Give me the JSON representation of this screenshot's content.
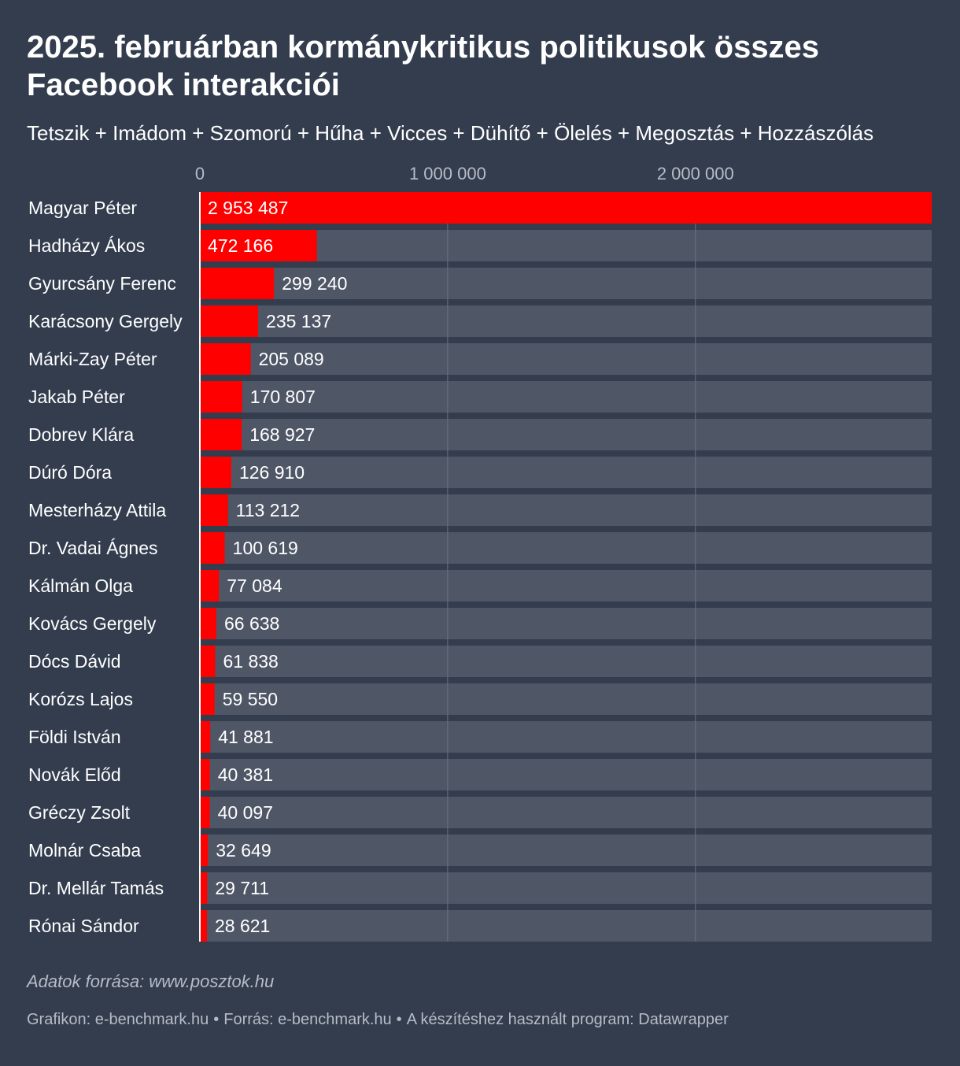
{
  "title": "2025. februárban kormánykritikus politikusok összes Facebook interakciói",
  "subtitle": "Tetszik + Imádom + Szomorú + Hűha + Vicces + Dühítő + Ölelés + Megosztás + Hozzászólás",
  "colors": {
    "background": "#333d4e",
    "track": "#4f5767",
    "bar": "#ff0000",
    "grid": "#6a7282",
    "axis": "#ffffff",
    "tick_text": "#b7bcc6",
    "text": "#ffffff"
  },
  "chart_data": {
    "type": "bar",
    "orientation": "horizontal",
    "xlim": [
      0,
      2953487
    ],
    "ticks": [
      {
        "value": 0,
        "label": "0"
      },
      {
        "value": 1000000,
        "label": "1 000 000"
      },
      {
        "value": 2000000,
        "label": "2 000 000"
      }
    ],
    "categories": [
      "Magyar Péter",
      "Hadházy Ákos",
      "Gyurcsány Ferenc",
      "Karácsony Gergely",
      "Márki-Zay Péter",
      "Jakab Péter",
      "Dobrev Klára",
      "Dúró Dóra",
      "Mesterházy Attila",
      "Dr. Vadai Ágnes",
      "Kálmán Olga",
      "Kovács Gergely",
      "Dócs Dávid",
      "Korózs Lajos",
      "Földi István",
      "Novák Előd",
      "Gréczy Zsolt",
      "Molnár Csaba",
      "Dr. Mellár Tamás",
      "Rónai Sándor"
    ],
    "values": [
      2953487,
      472166,
      299240,
      235137,
      205089,
      170807,
      168927,
      126910,
      113212,
      100619,
      77084,
      66638,
      61838,
      59550,
      41881,
      40381,
      40097,
      32649,
      29711,
      28621
    ],
    "value_labels": [
      "2 953 487",
      "472 166",
      "299 240",
      "235 137",
      "205 089",
      "170 807",
      "168 927",
      "126 910",
      "113 212",
      "100 619",
      "77 084",
      "66 638",
      "61 838",
      "59 550",
      "41 881",
      "40 381",
      "40 097",
      "32 649",
      "29 711",
      "28 621"
    ],
    "grid": true,
    "legend": "none"
  },
  "footer": {
    "source": "Adatok forrása: www.posztok.hu",
    "credit_graphic": "Grafikon: e-benchmark.hu",
    "credit_source": "Forrás: e-benchmark.hu",
    "credit_tool": "A készítéshez használt program: Datawrapper",
    "separator": "•"
  }
}
